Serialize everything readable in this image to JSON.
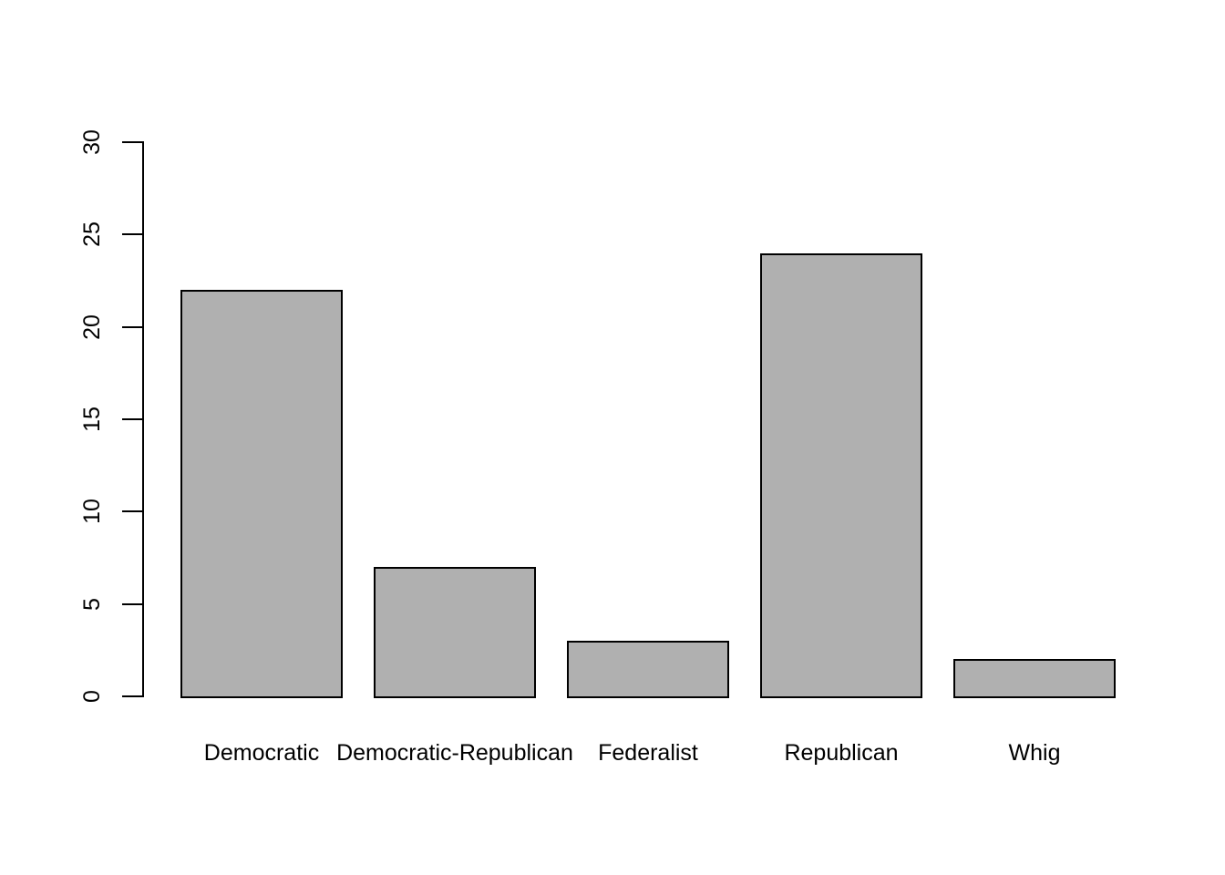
{
  "chart_data": {
    "type": "bar",
    "title": "",
    "xlabel": "",
    "ylabel": "",
    "categories": [
      "Democratic",
      "Democratic-Republican",
      "Federalist",
      "Republican",
      "Whig"
    ],
    "values": [
      22,
      7,
      3,
      24,
      2
    ],
    "ylim": [
      0,
      30
    ],
    "yticks": [
      0,
      5,
      10,
      15,
      20,
      25,
      30
    ],
    "grid": false,
    "legend": false,
    "colors": {
      "bar_fill": "#b0b0b0",
      "bar_stroke": "#000000",
      "axis": "#000000",
      "text": "#000000",
      "background": "#ffffff"
    }
  }
}
